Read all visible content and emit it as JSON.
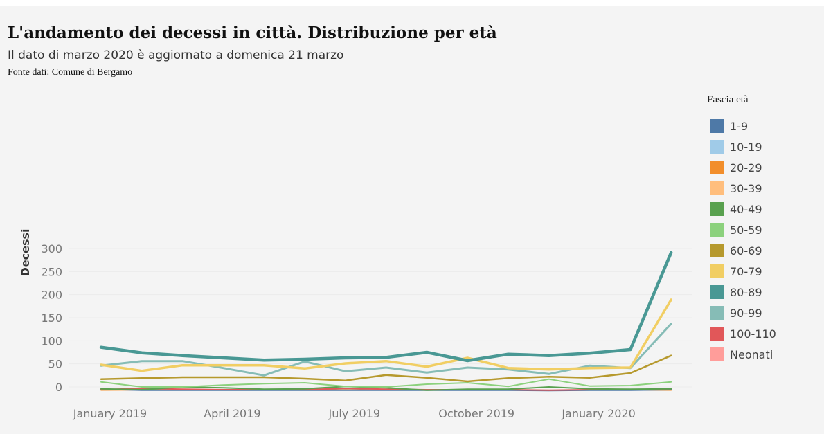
{
  "header": {
    "title": "L'andamento dei decessi in città. Distribuzione per età",
    "subtitle": "Il dato di marzo 2020 è aggiornato a domenica 21 marzo",
    "source": "Fonte dati: Comune di Bergamo"
  },
  "legend": {
    "title": "Fascia età",
    "items": [
      {
        "label": "1-9",
        "color": "#4e79a7"
      },
      {
        "label": "10-19",
        "color": "#a0cbe8"
      },
      {
        "label": "20-29",
        "color": "#f28e2b"
      },
      {
        "label": "30-39",
        "color": "#ffbe7d"
      },
      {
        "label": "40-49",
        "color": "#59a14f"
      },
      {
        "label": "50-59",
        "color": "#8cd17d"
      },
      {
        "label": "60-69",
        "color": "#b6992d"
      },
      {
        "label": "70-79",
        "color": "#f1ce63"
      },
      {
        "label": "80-89",
        "color": "#499894"
      },
      {
        "label": "90-99",
        "color": "#86bcb6"
      },
      {
        "label": "100-110",
        "color": "#e15759"
      },
      {
        "label": "Neonati",
        "color": "#ff9d9a"
      }
    ]
  },
  "chart_data": {
    "type": "line",
    "ylabel": "Decessi",
    "xlabel": "",
    "ylim": [
      -10,
      310
    ],
    "yticks": [
      0,
      50,
      100,
      150,
      200,
      250,
      300
    ],
    "x": [
      "2019-01",
      "2019-02",
      "2019-03",
      "2019-04",
      "2019-05",
      "2019-06",
      "2019-07",
      "2019-08",
      "2019-09",
      "2019-10",
      "2019-11",
      "2019-12",
      "2020-01",
      "2020-02",
      "2020-03"
    ],
    "xticks": [
      {
        "label": "January 2019",
        "index": 0
      },
      {
        "label": "April 2019",
        "index": 3
      },
      {
        "label": "July 2019",
        "index": 6
      },
      {
        "label": "October 2019",
        "index": 9
      },
      {
        "label": "January 2020",
        "index": 12
      }
    ],
    "series": [
      {
        "name": "80-89",
        "color": "#499894",
        "width": 4.5,
        "values": [
          86,
          74,
          68,
          63,
          58,
          60,
          63,
          64,
          75,
          57,
          71,
          68,
          73,
          81,
          291
        ]
      },
      {
        "name": "70-79",
        "color": "#f1ce63",
        "width": 3.5,
        "values": [
          48,
          35,
          47,
          47,
          47,
          40,
          51,
          56,
          44,
          63,
          41,
          38,
          41,
          42,
          189
        ]
      },
      {
        "name": "90-99",
        "color": "#86bcb6",
        "width": 3,
        "values": [
          46,
          56,
          56,
          41,
          25,
          55,
          34,
          42,
          31,
          42,
          38,
          28,
          46,
          41,
          137
        ]
      },
      {
        "name": "60-69",
        "color": "#b6992d",
        "width": 2.5,
        "values": [
          17,
          19,
          21,
          21,
          21,
          18,
          14,
          26,
          20,
          12,
          19,
          22,
          20,
          30,
          68
        ]
      },
      {
        "name": "50-59",
        "color": "#8cd17d",
        "width": 2,
        "values": [
          11,
          0,
          0,
          4,
          7,
          9,
          1,
          0,
          6,
          9,
          1,
          17,
          2,
          3,
          11
        ]
      },
      {
        "name": "40-49",
        "color": "#59a14f",
        "width": 2,
        "values": [
          -4,
          -6,
          0,
          -2,
          -5,
          -4,
          1,
          -2,
          -7,
          -5,
          -5,
          0,
          -4,
          -5,
          -4
        ]
      },
      {
        "name": "100-110",
        "color": "#e15759",
        "width": 2,
        "values": [
          -6,
          -3,
          -5,
          -6,
          -6,
          -6,
          -3,
          -5,
          -6,
          -6,
          -6,
          -7,
          -6,
          -6,
          -4
        ]
      },
      {
        "name": "1-9",
        "color": "#4e79a7",
        "width": 2,
        "values": [
          -5,
          -7,
          -7,
          -7,
          -7,
          -7,
          -7,
          -7,
          -7,
          -7,
          -7,
          -8,
          -7,
          -7,
          -6
        ]
      },
      {
        "name": "20-29",
        "color": "#f28e2b",
        "width": 1.5,
        "values": [
          -7,
          -6,
          -7,
          -7,
          -7,
          -7,
          -6,
          -7,
          -7,
          -7,
          -7,
          -7,
          -7,
          -7,
          -7
        ]
      },
      {
        "name": "30-39",
        "color": "#ffbe7d",
        "width": 1.5,
        "values": [
          -7,
          -7,
          -7,
          -7,
          -7,
          -7,
          -7,
          -7,
          -7,
          -7,
          -7,
          -7,
          -7,
          -7,
          -7
        ]
      }
    ]
  }
}
